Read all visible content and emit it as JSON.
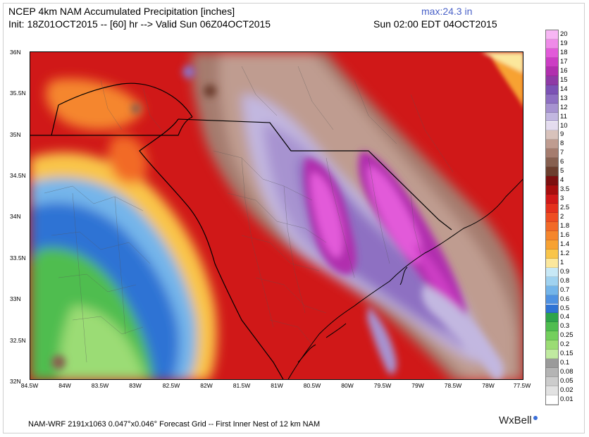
{
  "header": {
    "title": "NCEP 4km NAM Accumulated Precipitation [inches]",
    "max_label": "max:24.3 in",
    "init_line": "Init: 18Z01OCT2015 -- [60] hr --> Valid Sun 06Z04OCT2015",
    "valid_local": "Sun 02:00 EDT 04OCT2015"
  },
  "map": {
    "lat_ticks": [
      "36N",
      "35.5N",
      "35N",
      "34.5N",
      "34N",
      "33.5N",
      "33N",
      "32.5N",
      "32N"
    ],
    "lon_ticks": [
      "84.5W",
      "84W",
      "83.5W",
      "83W",
      "82.5W",
      "82W",
      "81.5W",
      "81W",
      "80.5W",
      "80W",
      "79.5W",
      "79W",
      "78.5W",
      "78W",
      "77.5W"
    ]
  },
  "colorbar": {
    "levels": [
      {
        "label": "20",
        "color": "#f7b6f4"
      },
      {
        "label": "19",
        "color": "#ef8ae8"
      },
      {
        "label": "18",
        "color": "#e25ad9"
      },
      {
        "label": "17",
        "color": "#cc3dc4"
      },
      {
        "label": "16",
        "color": "#b12fae"
      },
      {
        "label": "15",
        "color": "#8f3aa6"
      },
      {
        "label": "14",
        "color": "#7c52b5"
      },
      {
        "label": "13",
        "color": "#8e6fc2"
      },
      {
        "label": "12",
        "color": "#a793d0"
      },
      {
        "label": "11",
        "color": "#c2b7e0"
      },
      {
        "label": "10",
        "color": "#e4dcef"
      },
      {
        "label": "9",
        "color": "#d8c2bb"
      },
      {
        "label": "8",
        "color": "#bf9c90"
      },
      {
        "label": "7",
        "color": "#a57c6e"
      },
      {
        "label": "6",
        "color": "#876050"
      },
      {
        "label": "5",
        "color": "#6d3e2e"
      },
      {
        "label": "4",
        "color": "#7d0f0f"
      },
      {
        "label": "3.5",
        "color": "#a70e0e"
      },
      {
        "label": "3",
        "color": "#d01818"
      },
      {
        "label": "2.5",
        "color": "#e4301d"
      },
      {
        "label": "2",
        "color": "#ee4d22"
      },
      {
        "label": "1.8",
        "color": "#f26a28"
      },
      {
        "label": "1.6",
        "color": "#f5862d"
      },
      {
        "label": "1.4",
        "color": "#f7a233"
      },
      {
        "label": "1.2",
        "color": "#f9c54a"
      },
      {
        "label": "1",
        "color": "#fbe79c"
      },
      {
        "label": "0.9",
        "color": "#c7e8f6"
      },
      {
        "label": "0.8",
        "color": "#9fd2f0"
      },
      {
        "label": "0.7",
        "color": "#74b5ea"
      },
      {
        "label": "0.6",
        "color": "#4f92e2"
      },
      {
        "label": "0.5",
        "color": "#2f73d4"
      },
      {
        "label": "0.4",
        "color": "#2ea44a"
      },
      {
        "label": "0.3",
        "color": "#4fbd4f"
      },
      {
        "label": "0.25",
        "color": "#74cf5d"
      },
      {
        "label": "0.2",
        "color": "#9bdc74"
      },
      {
        "label": "0.15",
        "color": "#c0eaa0"
      },
      {
        "label": "0.1",
        "color": "#9a9a9a"
      },
      {
        "label": "0.08",
        "color": "#b4b4b4"
      },
      {
        "label": "0.05",
        "color": "#cccccc"
      },
      {
        "label": "0.02",
        "color": "#e2e2e2"
      },
      {
        "label": "0.01",
        "color": "#ffffff"
      }
    ]
  },
  "footer": {
    "text": "NAM-WRF 2191x1063 0.047°x0.046° Forecast Grid -- First Inner Nest of 12 km NAM",
    "brand": "WxBell"
  }
}
